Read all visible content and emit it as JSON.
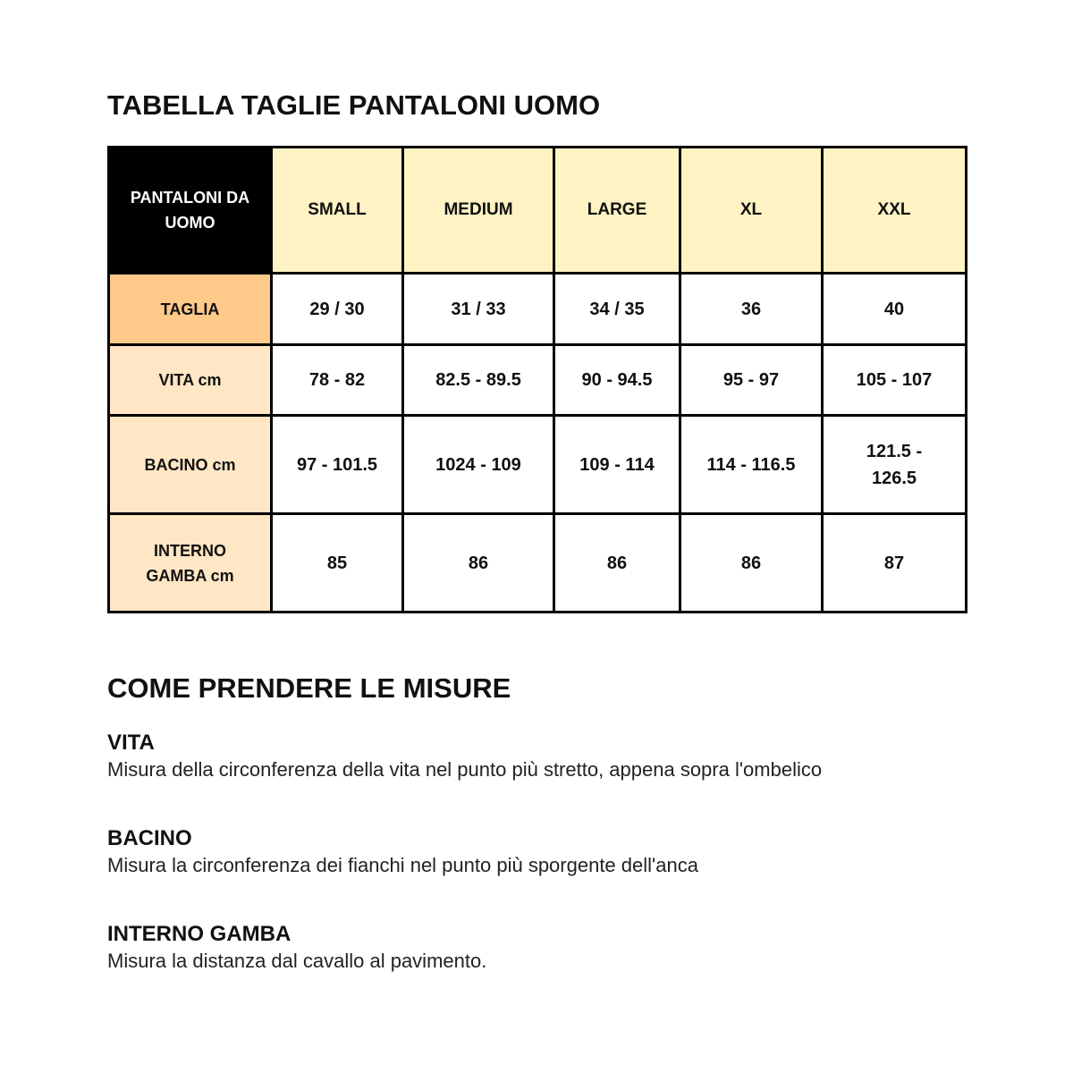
{
  "title": "TABELLA TAGLIE PANTALONI UOMO",
  "table": {
    "corner": "PANTALONI DA UOMO",
    "columns": [
      "SMALL",
      "MEDIUM",
      "LARGE",
      "XL",
      "XXL"
    ],
    "rows": [
      {
        "label": "TAGLIA",
        "values": [
          "29 / 30",
          "31 / 33",
          "34 / 35",
          "36",
          "40"
        ]
      },
      {
        "label": "VITA cm",
        "values": [
          "78 - 82",
          "82.5 - 89.5",
          "90 - 94.5",
          "95 - 97",
          "105 - 107"
        ]
      },
      {
        "label": "BACINO cm",
        "values": [
          "97 - 101.5",
          "1024 - 109",
          "109 - 114",
          "114 - 116.5",
          "121.5 - 126.5"
        ]
      },
      {
        "label": "INTERNO GAMBA cm",
        "values": [
          "85",
          "86",
          "86",
          "86",
          "87"
        ]
      }
    ]
  },
  "guide": {
    "title": "COME PRENDERE LE MISURE",
    "items": [
      {
        "heading": "VITA",
        "text": "Misura della circonferenza della vita nel punto più stretto, appena sopra l'ombelico"
      },
      {
        "heading": "BACINO",
        "text": "Misura la circonferenza dei fianchi nel punto più sporgente dell'anca"
      },
      {
        "heading": "INTERNO GAMBA",
        "text": "Misura la distanza dal cavallo al pavimento."
      }
    ]
  },
  "colors": {
    "header": "#fff3c4",
    "taglia": "#ffc98a",
    "row_label": "#ffe6c4",
    "corner": "#000000"
  }
}
